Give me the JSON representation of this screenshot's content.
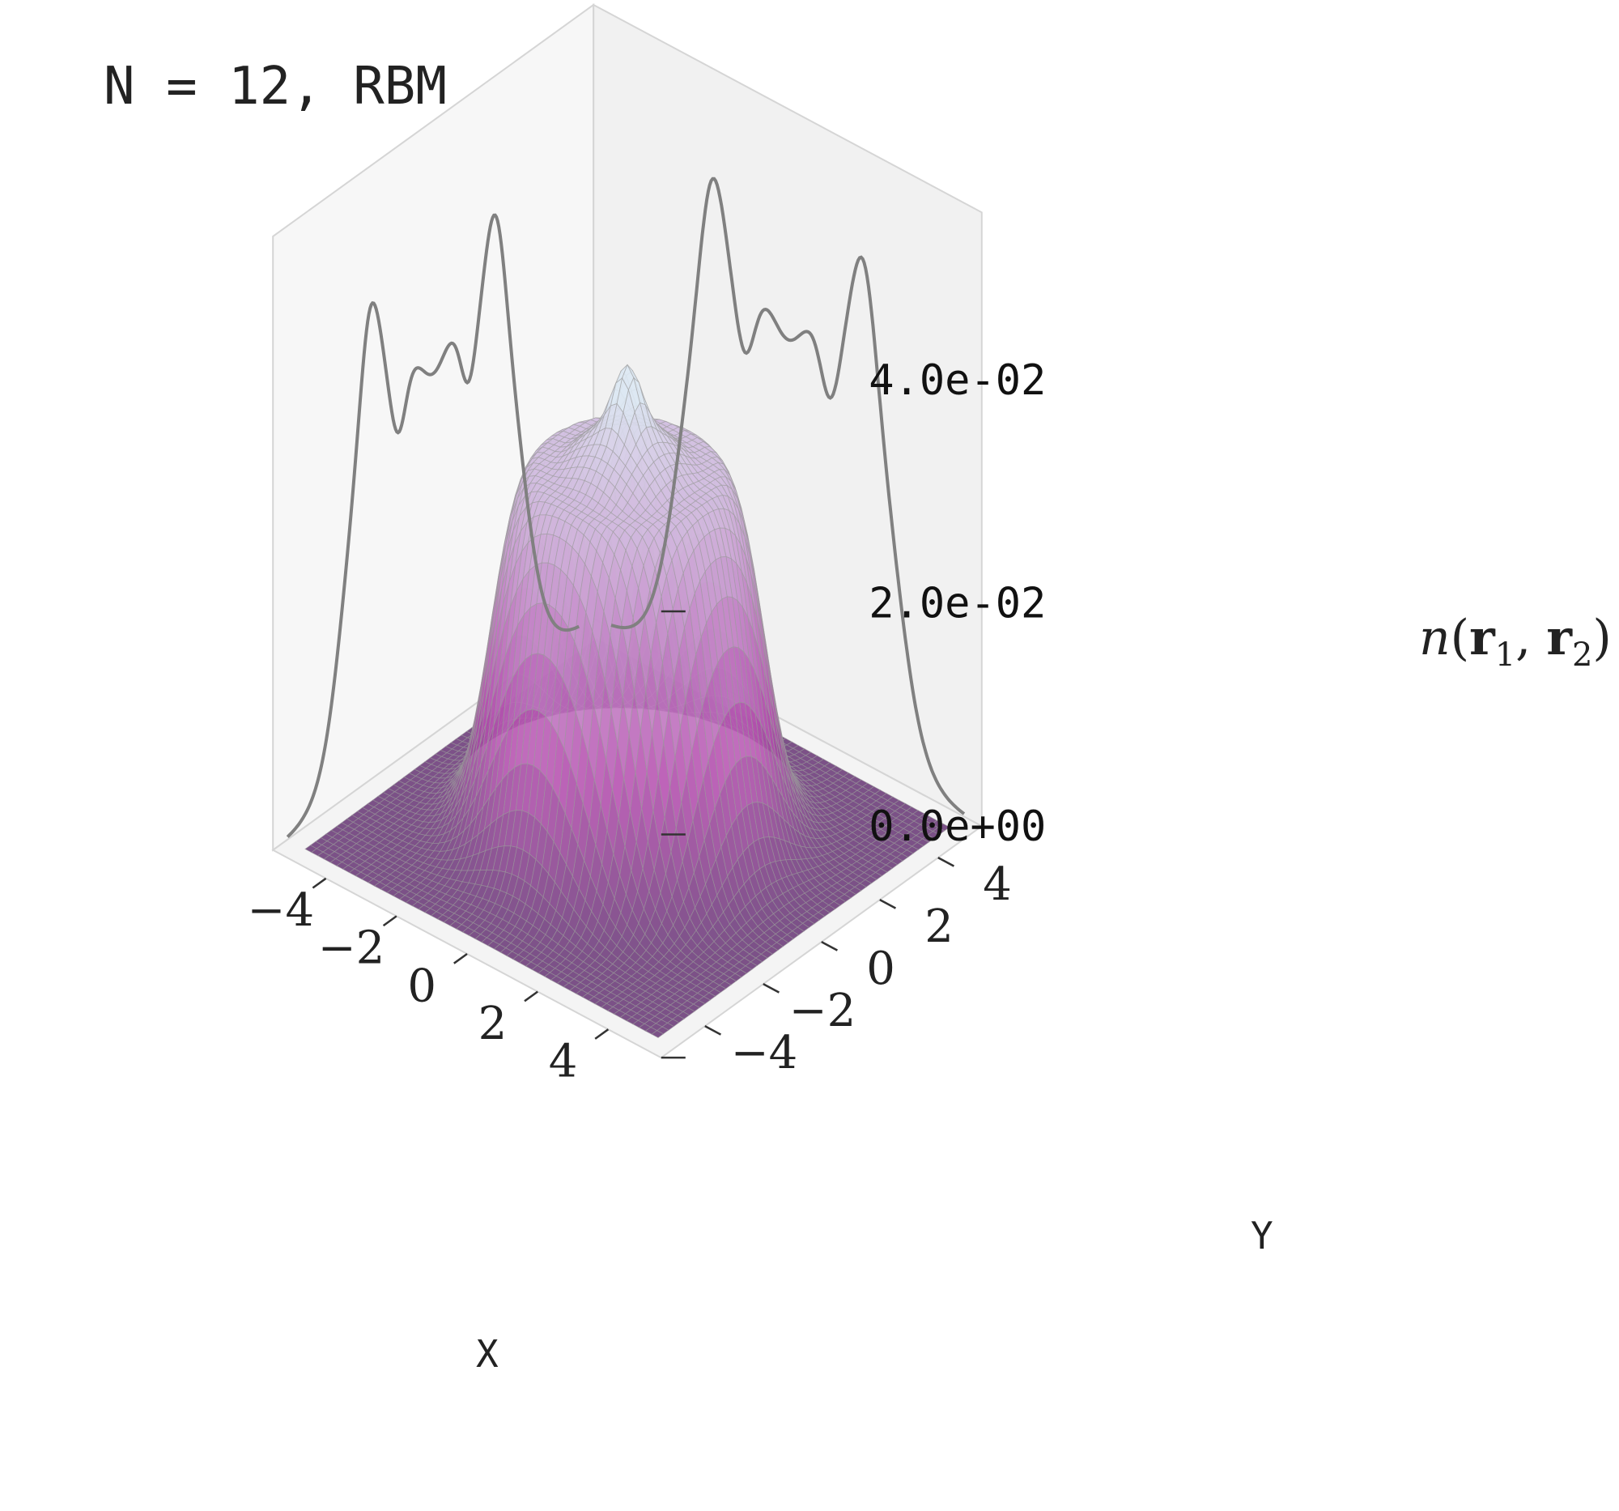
{
  "chart_data": {
    "type": "surface3d",
    "title": "N = 12, RBM",
    "xlabel": "X",
    "ylabel": "Y",
    "zlabel": {
      "base": "n",
      "open": "(",
      "arg1": "r",
      "sub1": "1",
      "sep": ", ",
      "arg2": "r",
      "sub2": "2",
      "close": ")"
    },
    "xlim": [
      -5.5,
      5.5
    ],
    "ylim": [
      -5.5,
      5.5
    ],
    "zlim": [
      0,
      0.055
    ],
    "xticks": [
      -4,
      -2,
      0,
      2,
      4
    ],
    "xtick_labels": [
      "−4",
      "−2",
      "0",
      "2",
      "4"
    ],
    "yticks": [
      -4,
      -2,
      0,
      2,
      4
    ],
    "ytick_labels": [
      "−4",
      "−2",
      "0",
      "2",
      "4"
    ],
    "zticks": [
      0.0,
      0.02,
      0.04
    ],
    "ztick_labels": [
      "0.0e+00",
      "2.0e-02",
      "4.0e-02"
    ],
    "grid": false,
    "surface_peak": 0.042,
    "projection_x_peak": 0.049,
    "projection_y_peak": 0.052,
    "colors": {
      "surface_low": "#6a3a78",
      "surface_mid": "#b64fb0",
      "surface_high": "#dde8f2",
      "wire": "#9a9a9a",
      "projection": "#808080",
      "pane_left": "#f7f7f7",
      "pane_back": "#f1f1f1",
      "pane_floor": "#f4f4f4",
      "pane_edge": "#d5d5d5"
    }
  }
}
